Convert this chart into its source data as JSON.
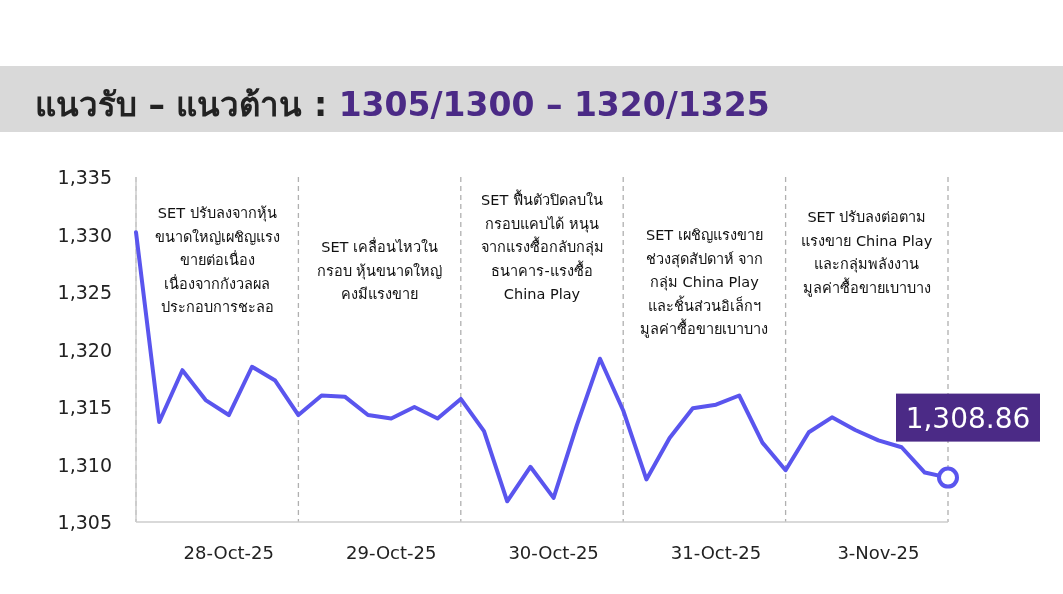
{
  "chart_data": {
    "type": "line",
    "title": "แนวรับ – แนวต้าน : 1305/1300 – 1320/1325",
    "categories": [
      null,
      null,
      null,
      null,
      "28-Oct-25",
      null,
      null,
      null,
      null,
      null,
      null,
      "29-Oct-25",
      null,
      null,
      null,
      null,
      null,
      null,
      "30-Oct-25",
      null,
      null,
      null,
      null,
      null,
      null,
      "31-Oct-25",
      null,
      null,
      null,
      null,
      null,
      null,
      "3-Nov-25",
      null,
      null,
      null
    ],
    "series": [
      {
        "color": "#5a55ee",
        "values": [
          1330.2,
          1313.7,
          1318.2,
          1315.6,
          1314.3,
          1318.5,
          1317.3,
          1314.3,
          1316.0,
          1315.9,
          1314.3,
          1314.0,
          1315.0,
          1314.0,
          1315.7,
          1312.9,
          1306.8,
          1309.8,
          1307.1,
          1313.4,
          1319.2,
          1314.7,
          1308.7,
          1312.3,
          1314.9,
          1315.2,
          1316.0,
          1311.9,
          1309.5,
          1312.8,
          1314.1,
          1313.0,
          1312.1,
          1311.5,
          1309.3,
          1308.86
        ],
        "value_labels": [
          null,
          null,
          null,
          null,
          null,
          null,
          null,
          null,
          null,
          null,
          null,
          null,
          null,
          null,
          null,
          null,
          null,
          null,
          null,
          null,
          null,
          null,
          null,
          null,
          null,
          null,
          null,
          null,
          null,
          null,
          null,
          null,
          null,
          null,
          null,
          "1,308.86"
        ]
      }
    ],
    "ylim": [
      1305,
      1335
    ],
    "yticks": [
      {
        "value": 1305,
        "label": "1,305"
      },
      {
        "value": 1310,
        "label": "1,310"
      },
      {
        "value": 1315,
        "label": "1,315"
      },
      {
        "value": 1320,
        "label": "1,320"
      },
      {
        "value": 1325,
        "label": "1,325"
      },
      {
        "value": 1330,
        "label": "1,330"
      },
      {
        "value": 1335,
        "label": "1,335"
      }
    ],
    "annotations": [
      "SET ปรับลงจากหุ้น\nขนาดใหญ่เผชิญแรง\nขายต่อเนื่อง\nเนื่องจากกังวลผล\nประกอบการชะลอ",
      "SET เคลื่อนไหวใน\nกรอบ หุ้นขนาดใหญ่\nคงมีแรงขาย",
      "SET ฟื้นตัวปิดลบใน\nกรอบแคบได้ หนุน\nจากแรงซื้อกลับกลุ่ม\nธนาคาร-แรงซื้อ\nChina Play",
      "SET เผชิญแรงขาย\nช่วงสุดสัปดาห์ จาก\nกลุ่ม China Play\nและชิ้นส่วนอิเล็กฯ\nมูลค่าซื้อขายเบาบาง",
      "SET ปรับลงต่อตาม\nแรงขาย China Play\nและกลุ่มพลังงาน\nมูลค่าซื้อขายเบาบาง"
    ],
    "grid": "x",
    "marker": "none",
    "line_style": "solid"
  }
}
